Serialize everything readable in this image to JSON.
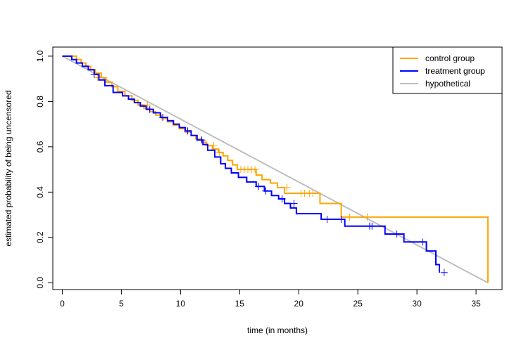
{
  "chart_data": {
    "type": "line",
    "title": "",
    "xlabel": "time (in months)",
    "ylabel": "estimated probability of being uncensored",
    "xlim": [
      -0.8,
      37.2
    ],
    "ylim": [
      -0.03,
      1.04
    ],
    "xticks": [
      0,
      5,
      10,
      15,
      20,
      25,
      30,
      35
    ],
    "yticks": [
      0.0,
      0.2,
      0.4,
      0.6,
      0.8,
      1.0
    ],
    "xtick_labels": [
      "0",
      "5",
      "10",
      "15",
      "20",
      "25",
      "30",
      "35"
    ],
    "ytick_labels": [
      "0.0",
      "0.2",
      "0.4",
      "0.6",
      "0.8",
      "1.0"
    ],
    "grid": false,
    "legend_position": "top-right",
    "series": [
      {
        "name": "control group",
        "color": "#FFA500",
        "step": true,
        "x": [
          0,
          1.2,
          1.6,
          2.0,
          2.4,
          2.8,
          3.3,
          3.7,
          4.2,
          4.7,
          5.3,
          5.9,
          6.4,
          6.9,
          7.4,
          7.9,
          8.4,
          8.9,
          9.4,
          9.9,
          10.4,
          10.9,
          11.3,
          11.8,
          12.2,
          12.7,
          13.2,
          13.6,
          14.0,
          14.4,
          14.8,
          16.4,
          16.9,
          17.6,
          18.2,
          18.8,
          21.8,
          23.6,
          36.0
        ],
        "y": [
          1.0,
          0.985,
          0.97,
          0.955,
          0.94,
          0.925,
          0.905,
          0.885,
          0.865,
          0.845,
          0.825,
          0.805,
          0.785,
          0.77,
          0.755,
          0.74,
          0.725,
          0.71,
          0.695,
          0.68,
          0.665,
          0.65,
          0.635,
          0.62,
          0.605,
          0.59,
          0.575,
          0.56,
          0.54,
          0.52,
          0.5,
          0.475,
          0.455,
          0.44,
          0.42,
          0.395,
          0.35,
          0.29,
          0.0
        ],
        "censor_x": [
          3.0,
          7.2,
          12.8,
          13.3,
          15.1,
          15.4,
          15.7,
          16.0,
          16.3,
          19.0,
          20.2,
          20.5,
          20.9,
          21.2,
          24.3,
          25.8
        ],
        "censor_y": [
          0.905,
          0.785,
          0.605,
          0.575,
          0.5,
          0.5,
          0.5,
          0.5,
          0.5,
          0.42,
          0.395,
          0.395,
          0.395,
          0.395,
          0.29,
          0.29
        ]
      },
      {
        "name": "treatment group",
        "color": "#0000FF",
        "step": true,
        "x": [
          0,
          0.8,
          1.2,
          1.7,
          2.2,
          2.7,
          3.1,
          3.6,
          4.3,
          5.1,
          5.6,
          6.1,
          6.6,
          7.1,
          7.7,
          8.3,
          8.9,
          9.4,
          9.9,
          10.4,
          10.9,
          11.4,
          11.9,
          12.3,
          12.9,
          13.4,
          13.8,
          14.3,
          14.9,
          15.6,
          16.4,
          17.1,
          17.7,
          18.3,
          18.8,
          19.3,
          19.8,
          21.9,
          23.9,
          27.3,
          28.9,
          30.8,
          31.6,
          31.9
        ],
        "y": [
          1.0,
          0.985,
          0.97,
          0.955,
          0.94,
          0.92,
          0.895,
          0.87,
          0.84,
          0.825,
          0.81,
          0.795,
          0.78,
          0.765,
          0.75,
          0.73,
          0.715,
          0.7,
          0.685,
          0.67,
          0.65,
          0.63,
          0.61,
          0.585,
          0.555,
          0.525,
          0.505,
          0.485,
          0.465,
          0.445,
          0.425,
          0.405,
          0.385,
          0.37,
          0.35,
          0.33,
          0.305,
          0.28,
          0.25,
          0.215,
          0.18,
          0.14,
          0.08,
          0.045
        ],
        "censor_x": [
          2.7,
          7.4,
          8.5,
          10.6,
          11.8,
          16.6,
          17.2,
          18.6,
          19.6,
          22.4,
          23.6,
          26.0,
          26.2,
          28.3,
          30.5,
          32.3
        ],
        "censor_y": [
          0.92,
          0.765,
          0.73,
          0.67,
          0.63,
          0.425,
          0.405,
          0.37,
          0.35,
          0.28,
          0.28,
          0.25,
          0.25,
          0.215,
          0.18,
          0.045
        ]
      },
      {
        "name": "hypothetical",
        "color": "#BEBEBE",
        "step": false,
        "x": [
          0,
          36
        ],
        "y": [
          1.0,
          0.0
        ]
      }
    ]
  }
}
